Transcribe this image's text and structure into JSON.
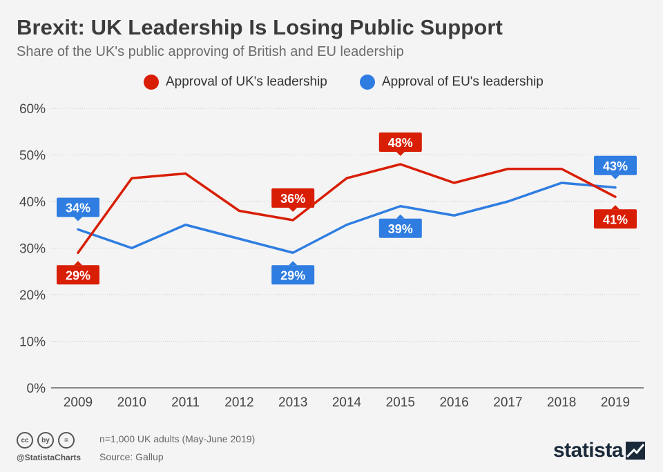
{
  "title": "Brexit: UK Leadership Is Losing Public Support",
  "subtitle": "Share of the UK's public approving of British and EU leadership",
  "legend": [
    {
      "label": "Approval of UK's leadership",
      "color": "#d81e05"
    },
    {
      "label": "Approval of EU's leadership",
      "color": "#2f7de1"
    }
  ],
  "chart_data": {
    "type": "line",
    "title": "Brexit: UK Leadership Is Losing Public Support",
    "subtitle": "Share of the UK's public approving of British and EU leadership",
    "x": [
      "2009",
      "2010",
      "2011",
      "2012",
      "2013",
      "2014",
      "2015",
      "2016",
      "2017",
      "2018",
      "2019"
    ],
    "ylim": [
      0,
      60
    ],
    "yticks": [
      "0%",
      "10%",
      "20%",
      "30%",
      "40%",
      "50%",
      "60%"
    ],
    "grid": true,
    "legend_position": "top-center",
    "series": [
      {
        "name": "Approval of UK's leadership",
        "color": "#d81e05",
        "values": [
          29,
          45,
          46,
          38,
          36,
          45,
          48,
          44,
          47,
          47,
          41
        ]
      },
      {
        "name": "Approval of EU's leadership",
        "color": "#2f7de1",
        "values": [
          34,
          30,
          35,
          32,
          29,
          35,
          39,
          37,
          40,
          44,
          43
        ]
      }
    ],
    "annotations": [
      {
        "series": 0,
        "index": 0,
        "text": "29%",
        "placement": "below"
      },
      {
        "series": 0,
        "index": 4,
        "text": "36%",
        "placement": "above"
      },
      {
        "series": 0,
        "index": 6,
        "text": "48%",
        "placement": "above"
      },
      {
        "series": 0,
        "index": 10,
        "text": "41%",
        "placement": "below"
      },
      {
        "series": 1,
        "index": 0,
        "text": "34%",
        "placement": "above"
      },
      {
        "series": 1,
        "index": 4,
        "text": "29%",
        "placement": "below"
      },
      {
        "series": 1,
        "index": 6,
        "text": "39%",
        "placement": "below"
      },
      {
        "series": 1,
        "index": 10,
        "text": "43%",
        "placement": "above"
      }
    ]
  },
  "footer": {
    "handle": "@StatistaCharts",
    "note": "n=1,000 UK adults (May-June 2019)",
    "source": "Source: Gallup",
    "brand": "statista",
    "license_icons": [
      "cc",
      "by",
      "="
    ]
  }
}
